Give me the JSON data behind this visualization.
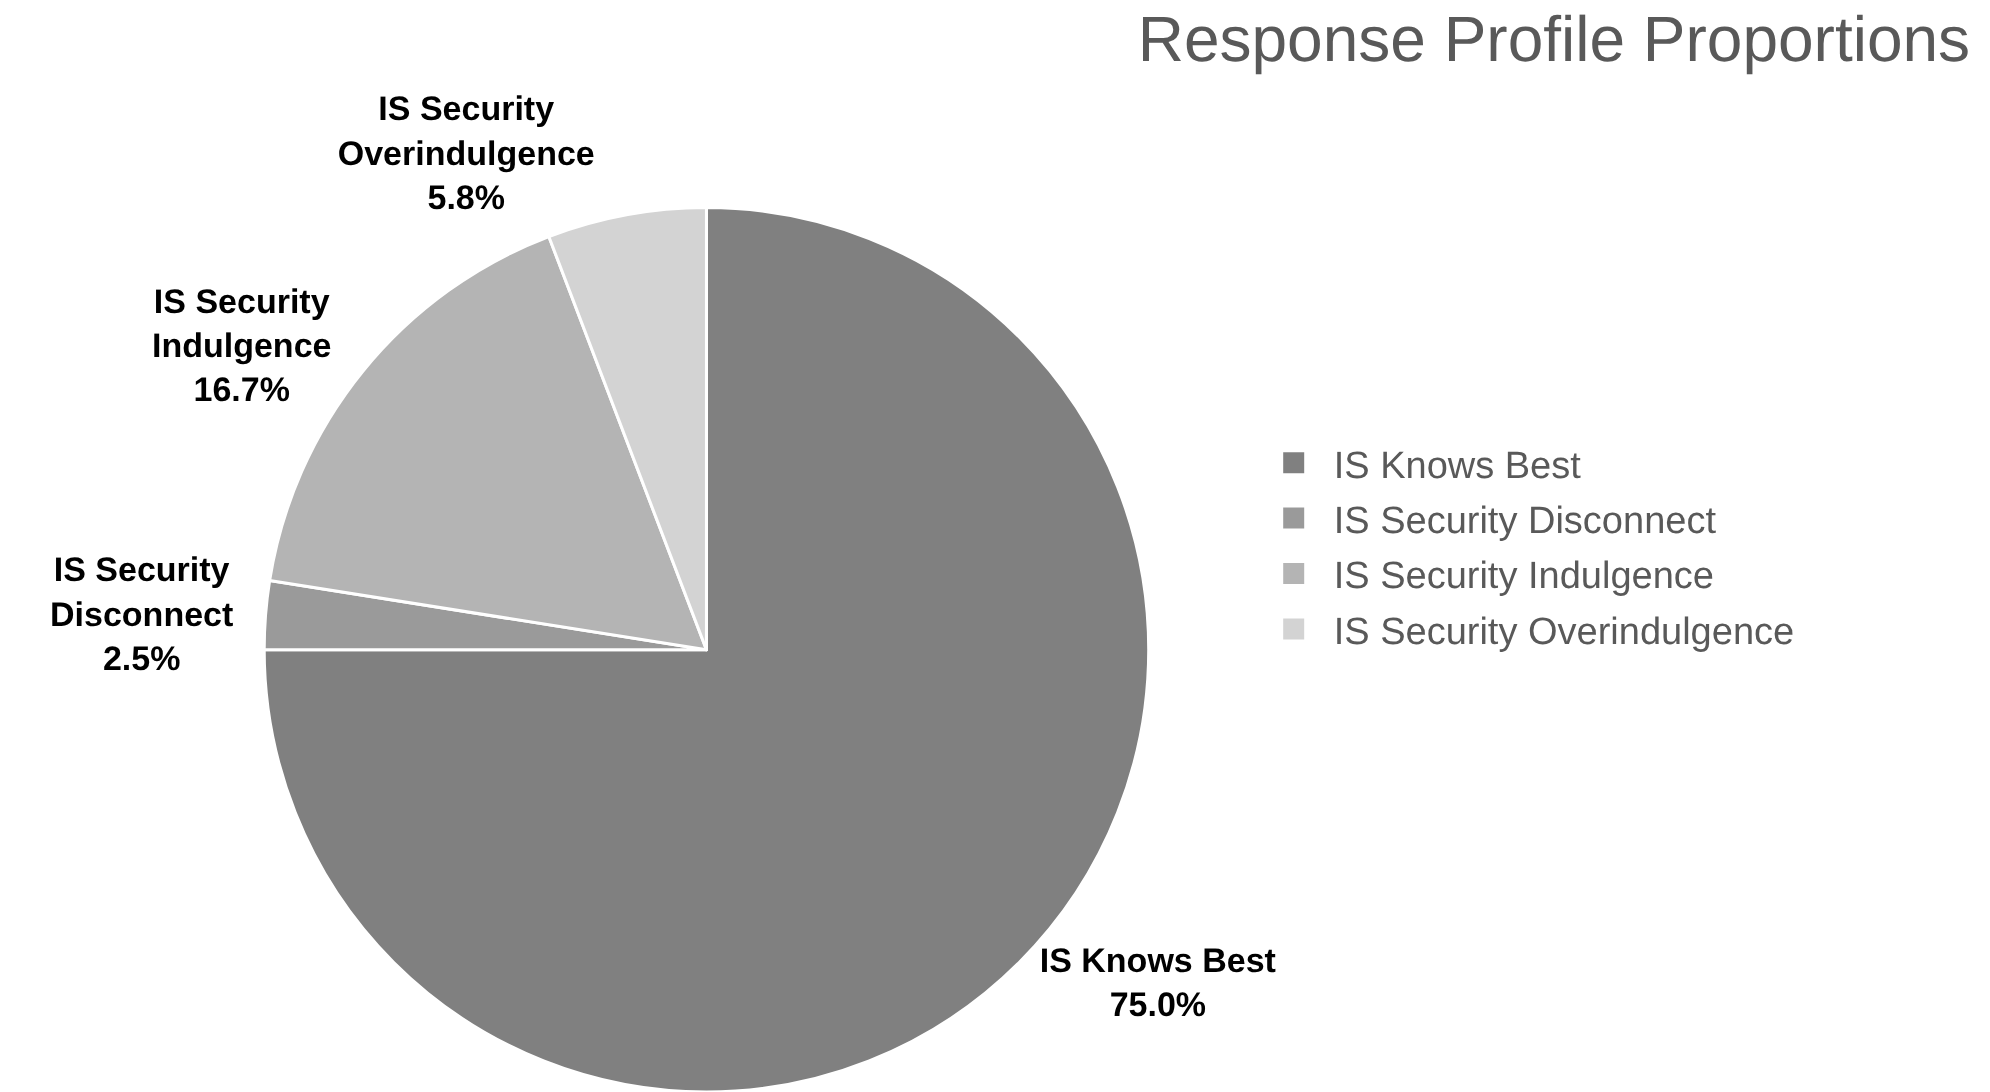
{
  "chart_data": {
    "type": "pie",
    "title": "Response Profile Proportions",
    "categories": [
      "IS Knows Best",
      "IS Security Disconnect",
      "IS Security Indulgence",
      "IS Security Overindulgence"
    ],
    "values": [
      75.0,
      2.5,
      16.7,
      5.8
    ],
    "value_labels": [
      "75.0%",
      "2.5%",
      "16.7%",
      "5.8%"
    ],
    "colors": [
      "#808080",
      "#9a9a9a",
      "#b4b4b4",
      "#d3d3d3"
    ],
    "legend": "right"
  }
}
